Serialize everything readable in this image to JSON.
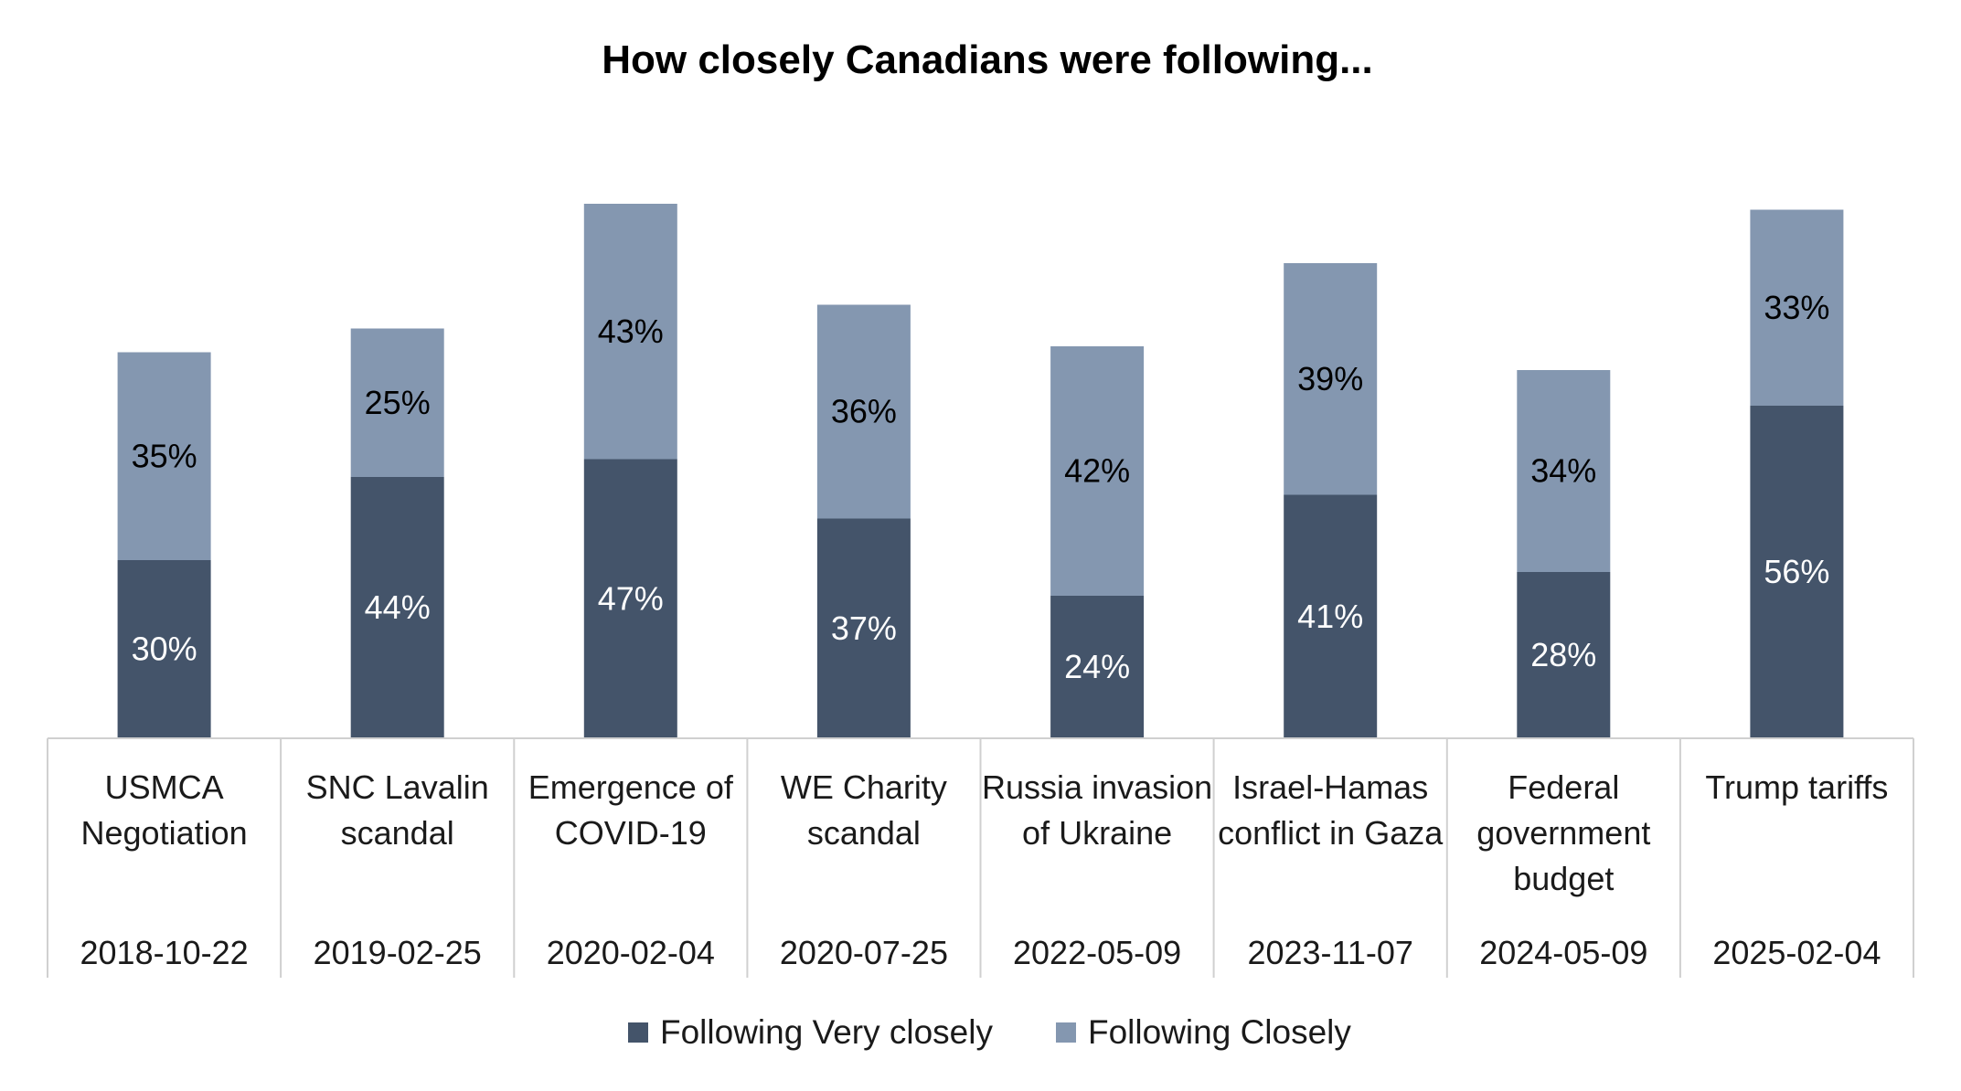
{
  "chart_data": {
    "type": "bar",
    "stacked": true,
    "title": "How closely Canadians were following...",
    "categories": [
      {
        "lines": [
          "USMCA",
          "Negotiation"
        ],
        "date": "2018-10-22"
      },
      {
        "lines": [
          "SNC Lavalin",
          "scandal"
        ],
        "date": "2019-02-25"
      },
      {
        "lines": [
          "Emergence of",
          "COVID-19"
        ],
        "date": "2020-02-04"
      },
      {
        "lines": [
          "WE Charity",
          "scandal"
        ],
        "date": "2020-07-25"
      },
      {
        "lines": [
          "Russia invasion",
          "of Ukraine"
        ],
        "date": "2022-05-09"
      },
      {
        "lines": [
          "Israel-Hamas",
          "conflict in Gaza"
        ],
        "date": "2023-11-07"
      },
      {
        "lines": [
          "Federal",
          "government",
          "budget"
        ],
        "date": "2024-05-09"
      },
      {
        "lines": [
          "Trump tariffs"
        ],
        "date": "2025-02-04"
      }
    ],
    "series": [
      {
        "name": "Following Very closely",
        "color": "#44546a",
        "label_color": "#ffffff",
        "values": [
          30,
          44,
          47,
          37,
          24,
          41,
          28,
          56
        ],
        "labels": [
          "30%",
          "44%",
          "47%",
          "37%",
          "24%",
          "41%",
          "28%",
          "56%"
        ]
      },
      {
        "name": "Following Closely",
        "color": "#8497b0",
        "label_color": "#000000",
        "values": [
          35,
          25,
          43,
          36,
          42,
          39,
          34,
          33
        ],
        "labels": [
          "35%",
          "25%",
          "43%",
          "36%",
          "42%",
          "39%",
          "34%",
          "33%"
        ]
      }
    ],
    "ylim": [
      0,
      95
    ],
    "grid": false,
    "legend": "bottom-center"
  }
}
